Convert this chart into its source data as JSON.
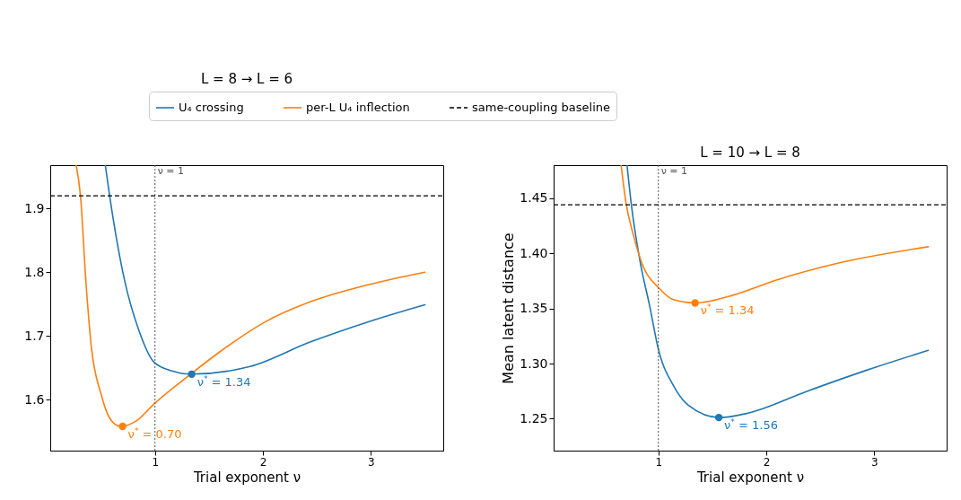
{
  "chart_data": [
    {
      "type": "line",
      "title": "L = 8 → L = 6",
      "xlabel": "Trial exponent ν",
      "xlim": [
        0.03,
        3.67
      ],
      "xticks": [
        1,
        2,
        3
      ],
      "ylim": [
        1.52,
        1.968
      ],
      "yticks": [
        1.6,
        1.7,
        1.8,
        1.9
      ],
      "legend": "top",
      "grid": false,
      "line_style": "solid",
      "series": [
        {
          "name": "U₄ crossing",
          "color": "#1f77b4",
          "x": [
            0.54,
            0.58,
            0.72,
            0.85,
            0.99,
            1.16,
            1.33,
            1.88,
            2.43,
            2.99,
            3.5
          ],
          "values": [
            1.968,
            1.92,
            1.786,
            1.709,
            1.659,
            1.645,
            1.64,
            1.652,
            1.69,
            1.723,
            1.749
          ]
        },
        {
          "name": "per-L U₄ inflection",
          "color": "#ff7f0e",
          "x": [
            0.27,
            0.31,
            0.36,
            0.41,
            0.5,
            0.58,
            0.68,
            0.83,
            0.99,
            1.33,
            1.6,
            2.02,
            2.43,
            2.99,
            3.5
          ],
          "values": [
            1.968,
            1.92,
            1.786,
            1.684,
            1.609,
            1.571,
            1.558,
            1.567,
            1.593,
            1.64,
            1.675,
            1.722,
            1.753,
            1.781,
            1.8
          ]
        },
        {
          "color": "#1f77b4",
          "type": "scatter",
          "marker": "circle",
          "x": [
            1.34
          ],
          "values": [
            1.64
          ]
        },
        {
          "color": "#ff7f0e",
          "type": "scatter",
          "marker": "circle",
          "x": [
            0.7
          ],
          "values": [
            1.558
          ]
        }
      ],
      "annotations": [
        {
          "text": "ν$^{*}$ = 1.34",
          "x": 1.34,
          "y": 1.64
        },
        {
          "text": "ν$^{*}$ = 0.70",
          "x": 0.7,
          "y": 1.558
        }
      ],
      "ref_lines": [
        {
          "axis": "x",
          "value": 1,
          "label": "ν = 1",
          "color": "#555555",
          "line_style": "dotted"
        },
        {
          "axis": "y",
          "value": 1.92,
          "label": "same-coupling baseline",
          "color": "#000000",
          "line_style": "dashed"
        }
      ]
    },
    {
      "type": "line",
      "title": "L = 10 → L = 8",
      "xlabel": "Trial exponent ν",
      "ylabel": "Mean latent distance",
      "xlim": [
        0.03,
        3.67
      ],
      "xticks": [
        1,
        2,
        3
      ],
      "ylim": [
        1.221,
        1.48
      ],
      "yticks": [
        1.25,
        {
          "value": 1.3,
          "label": "1.30"
        },
        1.35,
        {
          "value": 1.4,
          "label": "1.40"
        },
        1.45
      ],
      "grid": false,
      "line_style": "solid",
      "series": [
        {
          "color": "#1f77b4",
          "x": [
            0.71,
            0.75,
            0.83,
            0.92,
            1.0,
            1.14,
            1.28,
            1.565,
            1.83,
            2.38,
            2.93,
            3.5
          ],
          "values": [
            1.48,
            1.444,
            1.393,
            1.352,
            1.313,
            1.28,
            1.262,
            1.251,
            1.255,
            1.275,
            1.294,
            1.312
          ]
        },
        {
          "color": "#ff7f0e",
          "x": [
            0.655,
            0.7,
            0.77,
            0.86,
            1.0,
            1.14,
            1.345,
            1.69,
            2.1,
            2.66,
            3.5
          ],
          "values": [
            1.48,
            1.446,
            1.416,
            1.388,
            1.369,
            1.358,
            1.355,
            1.362,
            1.376,
            1.391,
            1.406
          ]
        },
        {
          "color": "#1f77b4",
          "type": "scatter",
          "marker": "circle",
          "x": [
            1.56
          ],
          "values": [
            1.251
          ]
        },
        {
          "color": "#ff7f0e",
          "type": "scatter",
          "marker": "circle",
          "x": [
            1.34
          ],
          "values": [
            1.355
          ]
        }
      ],
      "annotations": [
        {
          "text": "ν$^{*}$ = 1.56",
          "x": 1.56,
          "y": 1.251
        },
        {
          "text": "ν$^{*}$ = 1.34",
          "x": 1.34,
          "y": 1.355
        }
      ],
      "ref_lines": [
        {
          "axis": "x",
          "value": 1,
          "label": "ν = 1",
          "color": "#555555",
          "line_style": "dotted"
        },
        {
          "axis": "y",
          "value": 1.444,
          "color": "#000000",
          "line_style": "dashed"
        }
      ]
    }
  ]
}
